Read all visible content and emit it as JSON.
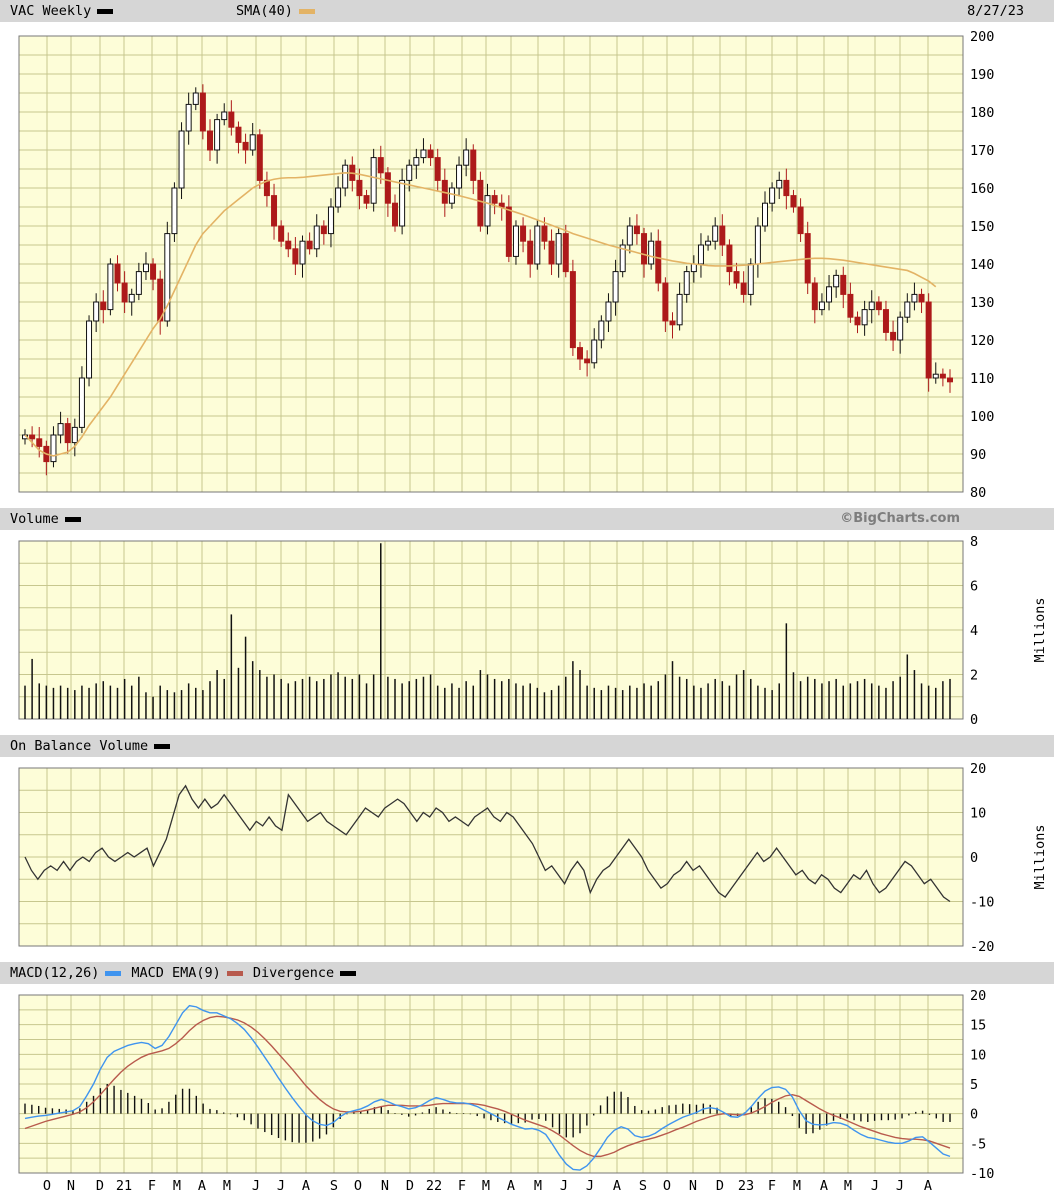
{
  "colors": {
    "panel_bg": "#fdfdd8",
    "grid": "#c7c78e",
    "up_candle": "#101010",
    "down_candle": "#ad1a1a",
    "sma": "#e3b365",
    "obv": "#333333",
    "macd": "#3f94ef",
    "macd_ema": "#b85a4d",
    "divergence": "#111111",
    "band": "#d6d6d6"
  },
  "header": {
    "ticker_label": "VAC Weekly",
    "sma_label": "SMA(40)",
    "date": "8/27/23"
  },
  "volume_header": {
    "label": "Volume",
    "watermark": "©BigCharts.com"
  },
  "obv_header": {
    "label": "On Balance Volume"
  },
  "macd_header": {
    "macd_label": "MACD(12,26)",
    "ema_label": "MACD EMA(9)",
    "div_label": "Divergence"
  },
  "chart_data": [
    {
      "type": "candlestick",
      "panel": "price",
      "ylim": [
        80,
        200
      ],
      "yticks": [
        80,
        90,
        100,
        110,
        120,
        130,
        140,
        150,
        160,
        170,
        180,
        190,
        200
      ],
      "grid": true,
      "x_labels": [
        "O",
        "N",
        "D",
        "21",
        "F",
        "M",
        "A",
        "M",
        "J",
        "J",
        "A",
        "S",
        "O",
        "N",
        "D",
        "22",
        "F",
        "M",
        "A",
        "M",
        "J",
        "J",
        "A",
        "S",
        "O",
        "N",
        "D",
        "23",
        "F",
        "M",
        "A",
        "M",
        "J",
        "J",
        "A"
      ],
      "close": [
        95,
        94,
        92,
        88,
        95,
        98,
        93,
        97,
        110,
        125,
        130,
        128,
        140,
        135,
        130,
        132,
        138,
        140,
        136,
        125,
        148,
        160,
        175,
        182,
        185,
        175,
        170,
        178,
        180,
        176,
        172,
        170,
        174,
        162,
        158,
        150,
        146,
        144,
        140,
        146,
        144,
        150,
        148,
        155,
        160,
        166,
        162,
        158,
        156,
        168,
        164,
        156,
        150,
        162,
        166,
        168,
        170,
        168,
        162,
        156,
        160,
        166,
        170,
        162,
        150,
        158,
        156,
        155,
        142,
        150,
        146,
        140,
        150,
        146,
        140,
        148,
        138,
        118,
        115,
        114,
        120,
        125,
        130,
        138,
        145,
        150,
        148,
        140,
        146,
        135,
        125,
        124,
        132,
        138,
        140,
        145,
        146,
        150,
        145,
        138,
        135,
        132,
        140,
        150,
        156,
        160,
        162,
        158,
        155,
        148,
        135,
        128,
        130,
        134,
        137,
        132,
        126,
        124,
        128,
        130,
        128,
        122,
        120,
        126,
        130,
        132,
        130,
        110,
        111,
        110,
        109
      ],
      "sma": [
        95,
        93,
        91,
        90,
        89.5,
        90,
        90.5,
        92,
        94.5,
        97.5,
        100,
        102.5,
        105,
        108,
        111,
        114,
        117,
        120,
        123,
        125.5,
        129,
        133,
        137,
        141,
        145,
        148,
        150,
        152,
        154,
        155.5,
        157,
        158.5,
        160,
        161,
        161.8,
        162.3,
        162.6,
        162.7,
        162.7,
        162.8,
        163,
        163.2,
        163.4,
        163.6,
        163.8,
        164,
        163.9,
        163.6,
        163.2,
        162.8,
        162.4,
        162,
        161.6,
        161.2,
        160.8,
        160.4,
        160,
        159.6,
        159.2,
        158.8,
        158.4,
        158,
        157.5,
        157,
        156.5,
        156,
        155.4,
        154.8,
        154.2,
        153.6,
        153,
        152.3,
        151.6,
        150.9,
        150.2,
        149.5,
        148.8,
        148,
        147.4,
        146.8,
        146.2,
        145.6,
        145,
        144.5,
        144,
        143.5,
        143,
        142.5,
        142,
        141.6,
        141.2,
        140.8,
        140.5,
        140.2,
        140,
        139.8,
        139.6,
        139.5,
        139.5,
        139.5,
        139.6,
        139.7,
        139.8,
        140,
        140.2,
        140.4,
        140.6,
        140.8,
        141,
        141.2,
        141.4,
        141.5,
        141.5,
        141.4,
        141.2,
        141,
        140.7,
        140.4,
        140.1,
        139.8,
        139.5,
        139.2,
        138.9,
        138.6,
        138.3,
        137.5,
        136.5,
        135.5,
        134
      ]
    },
    {
      "type": "bar",
      "panel": "volume",
      "ylabel": "Millions",
      "ylim": [
        0,
        8
      ],
      "yticks": [
        0,
        2,
        4,
        6,
        8
      ],
      "values": [
        1.5,
        2.7,
        1.6,
        1.5,
        1.4,
        1.5,
        1.4,
        1.3,
        1.5,
        1.4,
        1.6,
        1.7,
        1.5,
        1.4,
        1.8,
        1.5,
        1.9,
        1.2,
        1.0,
        1.5,
        1.3,
        1.2,
        1.3,
        1.6,
        1.4,
        1.3,
        1.7,
        2.2,
        1.8,
        4.7,
        2.3,
        3.7,
        2.6,
        2.2,
        1.9,
        2.0,
        1.8,
        1.6,
        1.7,
        1.8,
        1.9,
        1.7,
        1.8,
        2.0,
        2.1,
        1.9,
        1.8,
        2.0,
        1.6,
        2.0,
        7.9,
        1.9,
        1.8,
        1.6,
        1.7,
        1.8,
        1.9,
        2.0,
        1.5,
        1.4,
        1.6,
        1.4,
        1.7,
        1.5,
        2.2,
        2.0,
        1.8,
        1.7,
        1.8,
        1.6,
        1.5,
        1.6,
        1.4,
        1.2,
        1.3,
        1.5,
        1.9,
        2.6,
        2.2,
        1.5,
        1.4,
        1.3,
        1.5,
        1.4,
        1.3,
        1.5,
        1.4,
        1.6,
        1.5,
        1.7,
        2.0,
        2.6,
        1.9,
        1.8,
        1.5,
        1.4,
        1.6,
        1.8,
        1.7,
        1.5,
        2.0,
        2.2,
        1.8,
        1.5,
        1.4,
        1.3,
        1.6,
        4.3,
        2.1,
        1.7,
        1.9,
        1.8,
        1.6,
        1.7,
        1.8,
        1.5,
        1.6,
        1.7,
        1.8,
        1.6,
        1.5,
        1.4,
        1.7,
        1.9,
        2.9,
        2.2,
        1.6,
        1.5,
        1.4,
        1.7,
        1.8
      ]
    },
    {
      "type": "line",
      "panel": "obv",
      "ylabel": "Millions",
      "ylim": [
        -20,
        20
      ],
      "yticks": [
        -20,
        -10,
        0,
        10,
        20
      ],
      "values": [
        0,
        -3,
        -5,
        -3,
        -2,
        -3,
        -1,
        -3,
        -1,
        0,
        -1,
        1,
        2,
        0,
        -1,
        0,
        1,
        0,
        1,
        2,
        -2,
        1,
        4,
        9,
        14,
        16,
        13,
        11,
        13,
        11,
        12,
        14,
        12,
        10,
        8,
        6,
        8,
        7,
        9,
        7,
        6,
        14,
        12,
        10,
        8,
        9,
        10,
        8,
        7,
        6,
        5,
        7,
        9,
        11,
        10,
        9,
        11,
        12,
        13,
        12,
        10,
        8,
        10,
        9,
        11,
        10,
        8,
        9,
        8,
        7,
        9,
        10,
        11,
        9,
        8,
        10,
        9,
        7,
        5,
        3,
        0,
        -3,
        -2,
        -4,
        -6,
        -3,
        -1,
        -3,
        -8,
        -5,
        -3,
        -2,
        0,
        2,
        4,
        2,
        0,
        -3,
        -5,
        -7,
        -6,
        -4,
        -3,
        -1,
        -3,
        -2,
        -4,
        -6,
        -8,
        -9,
        -7,
        -5,
        -3,
        -1,
        1,
        -1,
        0,
        2,
        0,
        -2,
        -4,
        -3,
        -5,
        -6,
        -4,
        -5,
        -7,
        -8,
        -6,
        -4,
        -5,
        -3,
        -6,
        -8,
        -7,
        -5,
        -3,
        -1,
        -2,
        -4,
        -6,
        -5,
        -7,
        -9,
        -10
      ]
    },
    {
      "type": "line",
      "panel": "macd",
      "ylim": [
        -10,
        20
      ],
      "yticks": [
        -10,
        -5,
        0,
        5,
        10,
        15,
        20
      ],
      "series": [
        {
          "name": "MACD(12,26)",
          "values": [
            -0.8,
            -0.6,
            -0.4,
            -0.3,
            -0.1,
            0.1,
            0.3,
            0.5,
            1.2,
            3.0,
            5.0,
            7.5,
            9.5,
            10.5,
            11.0,
            11.5,
            11.8,
            12.0,
            11.8,
            11.0,
            11.5,
            13.0,
            15.0,
            17.0,
            18.2,
            18.0,
            17.4,
            17.0,
            17.0,
            16.5,
            16.0,
            15.2,
            14.2,
            12.8,
            11.2,
            9.5,
            7.8,
            6.0,
            4.3,
            2.7,
            1.2,
            -0.2,
            -1.2,
            -1.8,
            -2.0,
            -1.5,
            -0.5,
            0.2,
            0.5,
            0.8,
            1.3,
            2.0,
            2.4,
            2.0,
            1.5,
            1.2,
            0.8,
            1.0,
            1.5,
            2.2,
            2.7,
            2.4,
            2.0,
            1.8,
            1.8,
            1.6,
            1.2,
            0.6,
            0.0,
            -0.6,
            -1.2,
            -1.8,
            -2.2,
            -2.6,
            -2.5,
            -2.8,
            -3.5,
            -5.2,
            -7.0,
            -8.5,
            -9.4,
            -9.5,
            -8.8,
            -7.5,
            -5.8,
            -4.0,
            -2.8,
            -2.2,
            -2.6,
            -3.7,
            -4.0,
            -3.8,
            -3.3,
            -2.5,
            -1.8,
            -1.2,
            -0.6,
            -0.2,
            0.2,
            0.8,
            1.0,
            0.8,
            0.2,
            -0.5,
            -0.6,
            0.0,
            1.2,
            2.6,
            3.8,
            4.4,
            4.5,
            4.1,
            2.8,
            0.5,
            -1.2,
            -1.8,
            -1.9,
            -1.8,
            -1.5,
            -1.6,
            -2.0,
            -2.8,
            -3.5,
            -4.0,
            -4.2,
            -4.5,
            -4.8,
            -5.0,
            -5.0,
            -4.6,
            -4.0,
            -3.9,
            -4.8,
            -5.8,
            -6.8,
            -7.2
          ]
        },
        {
          "name": "MACD EMA(9)",
          "values": [
            -2.5,
            -2.1,
            -1.7,
            -1.3,
            -1.0,
            -0.7,
            -0.4,
            -0.1,
            0.3,
            1.0,
            2.0,
            3.2,
            4.5,
            5.8,
            7.0,
            8.0,
            8.8,
            9.5,
            10.0,
            10.3,
            10.6,
            11.0,
            11.8,
            12.8,
            14.0,
            15.0,
            15.7,
            16.2,
            16.4,
            16.3,
            16.1,
            15.8,
            15.3,
            14.6,
            13.7,
            12.6,
            11.4,
            10.1,
            8.8,
            7.5,
            6.1,
            4.7,
            3.5,
            2.4,
            1.5,
            0.8,
            0.4,
            0.3,
            0.3,
            0.4,
            0.6,
            0.9,
            1.2,
            1.4,
            1.4,
            1.4,
            1.3,
            1.3,
            1.3,
            1.4,
            1.6,
            1.7,
            1.7,
            1.7,
            1.7,
            1.7,
            1.6,
            1.4,
            1.1,
            0.8,
            0.4,
            -0.1,
            -0.6,
            -1.1,
            -1.5,
            -1.9,
            -2.3,
            -2.9,
            -3.6,
            -4.5,
            -5.4,
            -6.2,
            -6.8,
            -7.2,
            -7.2,
            -6.9,
            -6.5,
            -5.9,
            -5.4,
            -5.0,
            -4.6,
            -4.3,
            -4.0,
            -3.6,
            -3.2,
            -2.7,
            -2.3,
            -1.8,
            -1.3,
            -0.9,
            -0.5,
            -0.2,
            0.0,
            -0.1,
            -0.2,
            -0.2,
            0.1,
            0.6,
            1.2,
            1.9,
            2.5,
            3.0,
            3.2,
            2.9,
            2.2,
            1.5,
            0.8,
            0.2,
            -0.3,
            -0.7,
            -1.2,
            -1.7,
            -2.2,
            -2.6,
            -3.0,
            -3.4,
            -3.7,
            -4.0,
            -4.2,
            -4.3,
            -4.3,
            -4.4,
            -4.6,
            -5.0,
            -5.4,
            -5.8
          ]
        },
        {
          "name": "Divergence",
          "values": [
            1.7,
            1.5,
            1.3,
            1.0,
            0.9,
            0.8,
            0.7,
            0.6,
            0.9,
            2.0,
            3.0,
            4.3,
            5.0,
            4.7,
            4.0,
            3.5,
            3.0,
            2.5,
            1.8,
            0.7,
            0.9,
            2.0,
            3.2,
            4.2,
            4.2,
            3.0,
            1.7,
            0.8,
            0.6,
            0.2,
            -0.1,
            -0.6,
            -1.1,
            -1.8,
            -2.5,
            -3.1,
            -3.6,
            -4.1,
            -4.5,
            -4.8,
            -4.9,
            -4.9,
            -4.7,
            -4.2,
            -3.5,
            -2.3,
            -0.9,
            -0.1,
            0.2,
            0.4,
            0.7,
            1.1,
            1.2,
            0.6,
            0.1,
            -0.2,
            -0.5,
            -0.3,
            0.2,
            0.8,
            1.1,
            0.7,
            0.3,
            0.1,
            0.1,
            -0.1,
            -0.4,
            -0.8,
            -1.1,
            -1.4,
            -1.6,
            -1.7,
            -1.6,
            -1.5,
            -1.0,
            -0.9,
            -1.2,
            -2.3,
            -3.4,
            -4.0,
            -4.0,
            -3.3,
            -2.0,
            -0.3,
            1.4,
            2.9,
            3.7,
            3.7,
            2.8,
            1.3,
            0.6,
            0.5,
            0.7,
            1.1,
            1.4,
            1.5,
            1.7,
            1.6,
            1.5,
            1.7,
            1.5,
            1.0,
            0.2,
            -0.4,
            -0.4,
            0.2,
            1.1,
            2.0,
            2.6,
            2.5,
            2.0,
            1.1,
            -0.4,
            -2.4,
            -3.4,
            -3.3,
            -2.7,
            -2.0,
            -1.2,
            -0.9,
            -0.8,
            -1.1,
            -1.3,
            -1.4,
            -1.2,
            -1.1,
            -1.1,
            -1.0,
            -0.8,
            -0.3,
            0.3,
            0.5,
            -0.2,
            -0.8,
            -1.4,
            -1.4
          ]
        }
      ]
    }
  ]
}
